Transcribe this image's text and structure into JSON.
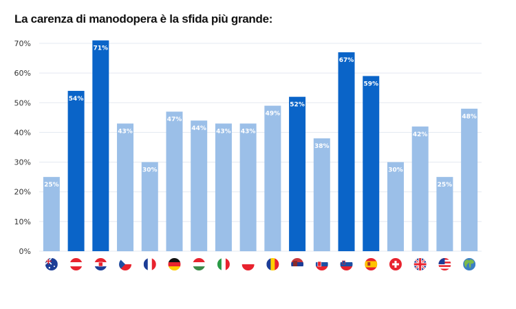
{
  "chart_data": {
    "type": "bar",
    "title": "La carenza di manodopera è la sfida più grande:",
    "xlabel": "",
    "ylabel": "",
    "ylim": [
      0,
      70
    ],
    "yticks": [
      "0%",
      "10%",
      "20%",
      "30%",
      "40%",
      "50%",
      "60%",
      "70%"
    ],
    "ytick_values": [
      0,
      10,
      20,
      30,
      40,
      50,
      60,
      70
    ],
    "grid": true,
    "categories": [
      "Australia",
      "Austria",
      "Croatia",
      "Czech Republic",
      "France",
      "Germany",
      "Hungary",
      "Italy",
      "Poland",
      "Romania",
      "Serbia",
      "Slovakia",
      "Slovenia",
      "Spain",
      "Switzerland",
      "United Kingdom",
      "United States",
      "Global"
    ],
    "category_icons": [
      "flag-australia-icon",
      "flag-austria-icon",
      "flag-croatia-icon",
      "flag-czech-icon",
      "flag-france-icon",
      "flag-germany-icon",
      "flag-hungary-icon",
      "flag-italy-icon",
      "flag-poland-icon",
      "flag-romania-icon",
      "flag-serbia-icon",
      "flag-slovakia-icon",
      "flag-slovenia-icon",
      "flag-spain-icon",
      "flag-switzerland-icon",
      "flag-uk-icon",
      "flag-usa-icon",
      "globe-icon"
    ],
    "values": [
      25,
      54,
      71,
      43,
      30,
      47,
      44,
      43,
      43,
      49,
      52,
      38,
      67,
      59,
      30,
      42,
      25,
      48
    ],
    "labels": [
      "25%",
      "54%",
      "71%",
      "43%",
      "30%",
      "47%",
      "44%",
      "43%",
      "43%",
      "49%",
      "52%",
      "38%",
      "67%",
      "59%",
      "30%",
      "42%",
      "25%",
      "48%"
    ],
    "highlighted": [
      false,
      true,
      true,
      false,
      false,
      false,
      false,
      false,
      false,
      false,
      true,
      false,
      true,
      true,
      false,
      false,
      false,
      false
    ],
    "colors": {
      "normal": "#9bbfe8",
      "highlight": "#0a64c8",
      "grid": "#e3e8f0",
      "label": "#ffffff"
    }
  }
}
